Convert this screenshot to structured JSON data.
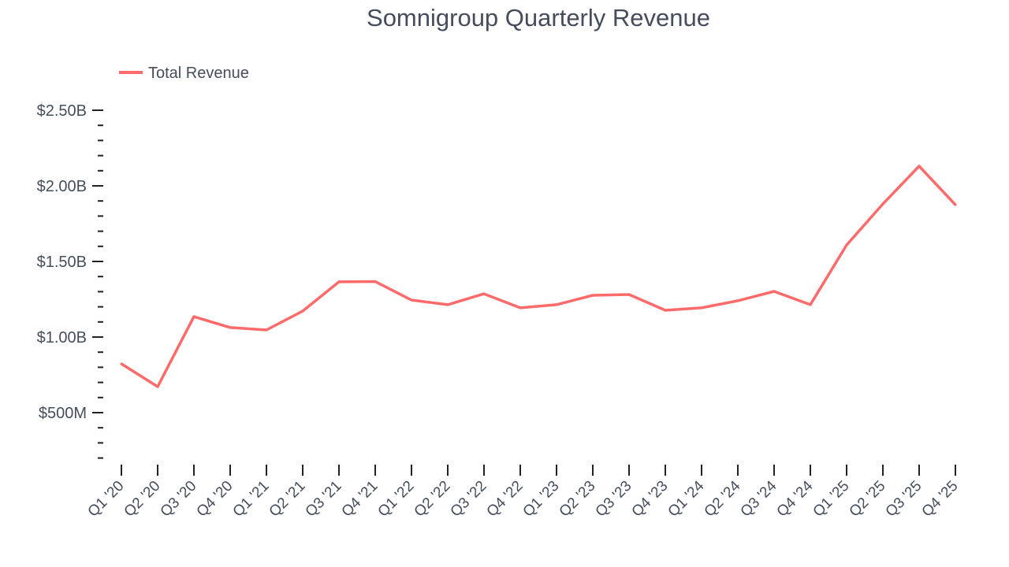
{
  "chart_data": {
    "type": "line",
    "title": "Somnigroup Quarterly Revenue",
    "xlabel": "",
    "ylabel": "",
    "legend": {
      "placement": "top-left",
      "entries": [
        "Total Revenue"
      ]
    },
    "grid": false,
    "categories": [
      "Q1 '20",
      "Q2 '20",
      "Q3 '20",
      "Q4 '20",
      "Q1 '21",
      "Q2 '21",
      "Q3 '21",
      "Q4 '21",
      "Q1 '22",
      "Q2 '22",
      "Q3 '22",
      "Q4 '22",
      "Q1 '23",
      "Q2 '23",
      "Q3 '23",
      "Q4 '23",
      "Q1 '24",
      "Q2 '24",
      "Q3 '24",
      "Q4 '24",
      "Q1 '25",
      "Q2 '25",
      "Q3 '25",
      "Q4 '25"
    ],
    "series": [
      {
        "name": "Total Revenue",
        "color": "#ff6b6b",
        "values": [
          0.823,
          0.672,
          1.135,
          1.063,
          1.047,
          1.172,
          1.365,
          1.367,
          1.245,
          1.214,
          1.286,
          1.193,
          1.214,
          1.276,
          1.281,
          1.177,
          1.193,
          1.24,
          1.302,
          1.214,
          1.609,
          1.88,
          2.13,
          1.875
        ]
      }
    ],
    "ylim": [
      0.16,
      2.5
    ],
    "yticks": [
      {
        "value": 2.5,
        "label": "$2.50B"
      },
      {
        "value": 2.0,
        "label": "$2.00B"
      },
      {
        "value": 1.5,
        "label": "$1.50B"
      },
      {
        "value": 1.0,
        "label": "$1.00B"
      },
      {
        "value": 0.5,
        "label": "$500M"
      }
    ],
    "yunit": "billions USD"
  }
}
